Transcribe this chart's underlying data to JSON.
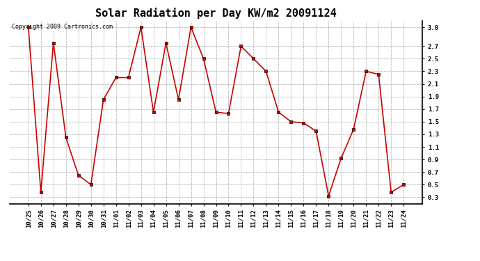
{
  "title": "Solar Radiation per Day KW/m2 20091124",
  "copyright_text": "Copyright 2009 Cartronics.com",
  "dates": [
    "10/25",
    "10/26",
    "10/27",
    "10/28",
    "10/29",
    "10/30",
    "10/31",
    "11/01",
    "11/02",
    "11/03",
    "11/04",
    "11/05",
    "11/06",
    "11/07",
    "11/08",
    "11/09",
    "11/10",
    "11/11",
    "11/12",
    "11/13",
    "11/14",
    "11/15",
    "11/16",
    "11/17",
    "11/18",
    "11/19",
    "11/20",
    "11/21",
    "11/22",
    "11/23",
    "11/24"
  ],
  "values": [
    3.0,
    0.38,
    2.75,
    1.25,
    0.65,
    0.5,
    1.85,
    2.2,
    2.2,
    3.0,
    1.65,
    2.75,
    1.85,
    3.0,
    2.5,
    1.65,
    1.63,
    2.7,
    2.5,
    2.3,
    1.65,
    1.5,
    1.48,
    1.35,
    0.32,
    0.92,
    1.38,
    2.3,
    2.25,
    0.38,
    0.5
  ],
  "line_color": "#cc0000",
  "bg_color": "#ffffff",
  "grid_color": "#aaaaaa",
  "ylim": [
    0.2,
    3.1
  ],
  "yticks": [
    0.3,
    0.5,
    0.7,
    0.9,
    1.1,
    1.3,
    1.5,
    1.7,
    1.9,
    2.1,
    2.3,
    2.5,
    2.7,
    3.0
  ],
  "ytick_labels": [
    "0.3",
    "0.5",
    "0.7",
    "0.9",
    "1.1",
    "1.3",
    "1.5",
    "1.7",
    "1.9",
    "2.1",
    "2.3",
    "2.5",
    "2.7",
    "3.0"
  ],
  "title_fontsize": 11,
  "tick_fontsize": 6.5,
  "copyright_fontsize": 6
}
